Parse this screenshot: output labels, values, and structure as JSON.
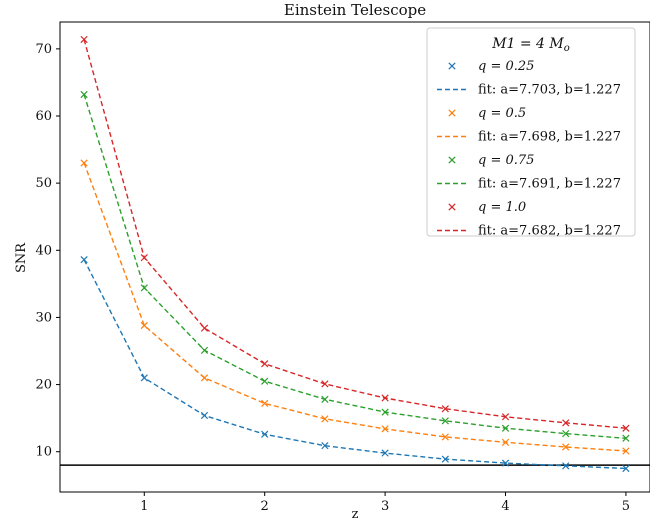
{
  "chart_data": {
    "type": "line",
    "title": "Einstein Telescope",
    "xlabel": "z",
    "ylabel": "SNR",
    "xlim": [
      0.3,
      5.2
    ],
    "ylim": [
      4,
      74
    ],
    "xticks": [
      1,
      2,
      3,
      4,
      5
    ],
    "yticks": [
      10,
      20,
      30,
      40,
      50,
      60,
      70
    ],
    "threshold": 8,
    "x": [
      0.5,
      1.0,
      1.5,
      2.0,
      2.5,
      3.0,
      3.5,
      4.0,
      4.5,
      5.0
    ],
    "legend_title": "M1 = 4 M",
    "legend_title_sub": "o",
    "legend_position": "top-right",
    "grid": false,
    "series": [
      {
        "name": "q = 0.25",
        "fit_name": "fit: a=7.703, b=1.227",
        "color": "#1f77b4",
        "values": [
          38.6,
          21.0,
          15.4,
          12.6,
          10.9,
          9.8,
          8.9,
          8.3,
          7.9,
          7.5
        ]
      },
      {
        "name": "q = 0.5",
        "fit_name": "fit: a=7.698, b=1.227",
        "color": "#ff7f0e",
        "values": [
          53.0,
          28.8,
          21.0,
          17.2,
          14.9,
          13.4,
          12.2,
          11.4,
          10.7,
          10.1
        ]
      },
      {
        "name": "q = 0.75",
        "fit_name": "fit: a=7.691, b=1.227",
        "color": "#2ca02c",
        "values": [
          63.2,
          34.4,
          25.1,
          20.5,
          17.8,
          15.9,
          14.6,
          13.5,
          12.7,
          12.0
        ]
      },
      {
        "name": "q = 1.0",
        "fit_name": "fit: a=7.682, b=1.227",
        "color": "#d62728",
        "values": [
          71.4,
          38.9,
          28.4,
          23.1,
          20.1,
          18.0,
          16.4,
          15.2,
          14.3,
          13.5
        ]
      }
    ]
  }
}
